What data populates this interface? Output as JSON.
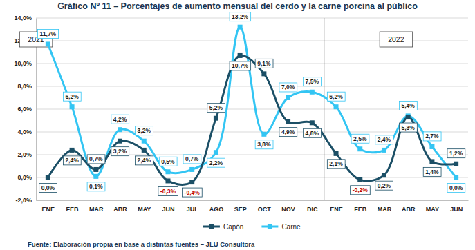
{
  "chart_data": {
    "type": "line",
    "title": "Gráfico Nº 11 – Porcentajes de aumento mensual del cerdo y la carne porcina al público",
    "source": "Fuente: Elaboración propia en base a distintas fuentes – JLU Consultora",
    "annotations": [
      "2021",
      "2022"
    ],
    "categories": [
      "ENE",
      "FEB",
      "MAR",
      "ABR",
      "MAY",
      "JUN",
      "JUL",
      "AGO",
      "SEP",
      "OCT",
      "NOV",
      "DIC",
      "ENE",
      "FEB",
      "MAR",
      "ABR",
      "MAY",
      "JUN"
    ],
    "series": [
      {
        "name": "Capón",
        "color": "#1b4f66",
        "marker": "square",
        "values": [
          0.0,
          2.4,
          0.7,
          3.2,
          2.4,
          -0.3,
          -0.4,
          5.2,
          10.7,
          9.1,
          4.9,
          4.8,
          2.1,
          -0.2,
          0.2,
          5.3,
          1.4,
          1.2
        ],
        "value_labels": [
          "0,0%",
          "2,4%",
          "0,7%",
          "3,2%",
          "2,4%",
          "-0,3%",
          "-0,4%",
          "5,2%",
          "10,7%",
          "9,1%",
          "4,9%",
          "4,8%",
          "2,1%",
          "-0,2%",
          "0,2%",
          "5,3%",
          "1,4%",
          "1,2%"
        ]
      },
      {
        "name": "Carne",
        "color": "#33c5f3",
        "marker": "square",
        "values": [
          11.7,
          6.2,
          0.1,
          4.2,
          3.2,
          0.5,
          0.7,
          2.2,
          13.2,
          3.8,
          7.0,
          7.5,
          6.2,
          2.5,
          2.4,
          5.4,
          2.7,
          0.0
        ],
        "value_labels": [
          "11,7%",
          "6,2%",
          "0,1%",
          "4,2%",
          "3,2%",
          "0,5%",
          "0,7%",
          "2,2%",
          "13,2%",
          "3,8%",
          "7,0%",
          "7,5%",
          "6,2%",
          "2,5%",
          "2,4%",
          "5,4%",
          "2,7%",
          "0,0%"
        ]
      }
    ],
    "ylim": [
      -2,
      14
    ],
    "yticks": [
      {
        "value": -2,
        "label": "-2,0%"
      },
      {
        "value": 0,
        "label": "0,0%"
      },
      {
        "value": 2,
        "label": "2,0%"
      },
      {
        "value": 4,
        "label": "4,0%"
      },
      {
        "value": 6,
        "label": "6,0%"
      },
      {
        "value": 8,
        "label": "8,0%"
      },
      {
        "value": 10,
        "label": "10,0%"
      },
      {
        "value": 12,
        "label": "12,0%"
      },
      {
        "value": 14,
        "label": "14,0%"
      }
    ],
    "grid": true,
    "data_labels": true,
    "legend": "bottom"
  }
}
